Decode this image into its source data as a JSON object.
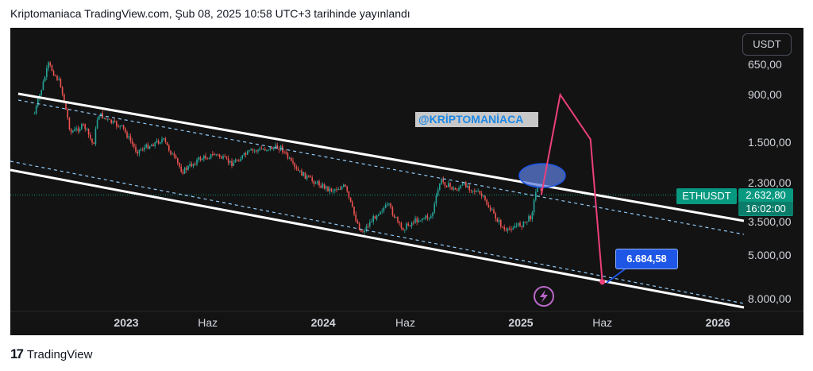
{
  "header": {
    "caption": "Kriptomaniaca TradingView.com, Şub 08, 2025 10:58 UTC+3 tarihinde yayınlandı"
  },
  "chart_data": {
    "type": "candlestick",
    "symbol": "ETHUSDT",
    "currency": "USDT",
    "scale": "log-inverted",
    "price_axis_labels": [
      "650,00",
      "900,00",
      "1.500,00",
      "2.300,00",
      "3.500,00",
      "5.000,00",
      "8.000,00"
    ],
    "price_axis_values": [
      650,
      900,
      1500,
      2300,
      3500,
      5000,
      8000
    ],
    "time_axis_labels": [
      {
        "text": "2023",
        "date": "2023-01-01",
        "year": true
      },
      {
        "text": "Haz",
        "date": "2023-06-01",
        "year": false
      },
      {
        "text": "2024",
        "date": "2024-01-01",
        "year": true
      },
      {
        "text": "Haz",
        "date": "2024-06-01",
        "year": false
      },
      {
        "text": "2025",
        "date": "2025-01-01",
        "year": true
      },
      {
        "text": "Haz",
        "date": "2025-06-01",
        "year": false
      },
      {
        "text": "2026",
        "date": "2026-01-01",
        "year": true
      }
    ],
    "last_price": "2.632,80",
    "countdown": "16:02:00",
    "watermark": "@KRİPTOMANİACA",
    "target_label": "6.684,58",
    "price_path": [
      {
        "date": "2022-07-15",
        "price": 1100
      },
      {
        "date": "2022-08-10",
        "price": 650
      },
      {
        "date": "2022-09-01",
        "price": 800
      },
      {
        "date": "2022-09-20",
        "price": 1350
      },
      {
        "date": "2022-10-15",
        "price": 1250
      },
      {
        "date": "2022-11-01",
        "price": 1550
      },
      {
        "date": "2022-11-10",
        "price": 1100
      },
      {
        "date": "2022-12-01",
        "price": 1200
      },
      {
        "date": "2022-12-25",
        "price": 1280
      },
      {
        "date": "2023-01-20",
        "price": 1650
      },
      {
        "date": "2023-03-10",
        "price": 1450
      },
      {
        "date": "2023-04-15",
        "price": 2050
      },
      {
        "date": "2023-05-15",
        "price": 1800
      },
      {
        "date": "2023-06-15",
        "price": 1700
      },
      {
        "date": "2023-07-15",
        "price": 1880
      },
      {
        "date": "2023-08-20",
        "price": 1650
      },
      {
        "date": "2023-09-20",
        "price": 1600
      },
      {
        "date": "2023-10-15",
        "price": 1580
      },
      {
        "date": "2023-11-10",
        "price": 2000
      },
      {
        "date": "2023-12-10",
        "price": 2250
      },
      {
        "date": "2024-01-15",
        "price": 2500
      },
      {
        "date": "2024-02-10",
        "price": 2400
      },
      {
        "date": "2024-03-01",
        "price": 3400
      },
      {
        "date": "2024-03-12",
        "price": 3950
      },
      {
        "date": "2024-04-15",
        "price": 3100
      },
      {
        "date": "2024-05-01",
        "price": 2950
      },
      {
        "date": "2024-05-25",
        "price": 3800
      },
      {
        "date": "2024-06-20",
        "price": 3450
      },
      {
        "date": "2024-07-20",
        "price": 3300
      },
      {
        "date": "2024-08-05",
        "price": 2250
      },
      {
        "date": "2024-09-01",
        "price": 2500
      },
      {
        "date": "2024-09-20",
        "price": 2350
      },
      {
        "date": "2024-10-20",
        "price": 2650
      },
      {
        "date": "2024-11-10",
        "price": 3200
      },
      {
        "date": "2024-12-05",
        "price": 3950
      },
      {
        "date": "2024-12-15",
        "price": 3700
      },
      {
        "date": "2025-01-06",
        "price": 3600
      },
      {
        "date": "2025-01-20",
        "price": 3300
      },
      {
        "date": "2025-02-03",
        "price": 2200
      },
      {
        "date": "2025-02-08",
        "price": 2632.8
      }
    ],
    "projection_path": [
      {
        "date": "2025-02-08",
        "price": 2632.8
      },
      {
        "date": "2025-03-15",
        "price": 900
      },
      {
        "date": "2025-05-10",
        "price": 1450
      },
      {
        "date": "2025-06-01",
        "price": 6684.58
      }
    ]
  },
  "footer": {
    "brand": "TradingView"
  },
  "colors": {
    "background": "#131313",
    "up": "#26a69a",
    "down": "#ef5350",
    "channel": "#ffffff",
    "dashed": "#90caf9",
    "projection": "#ec407a",
    "accent": "#089981"
  }
}
